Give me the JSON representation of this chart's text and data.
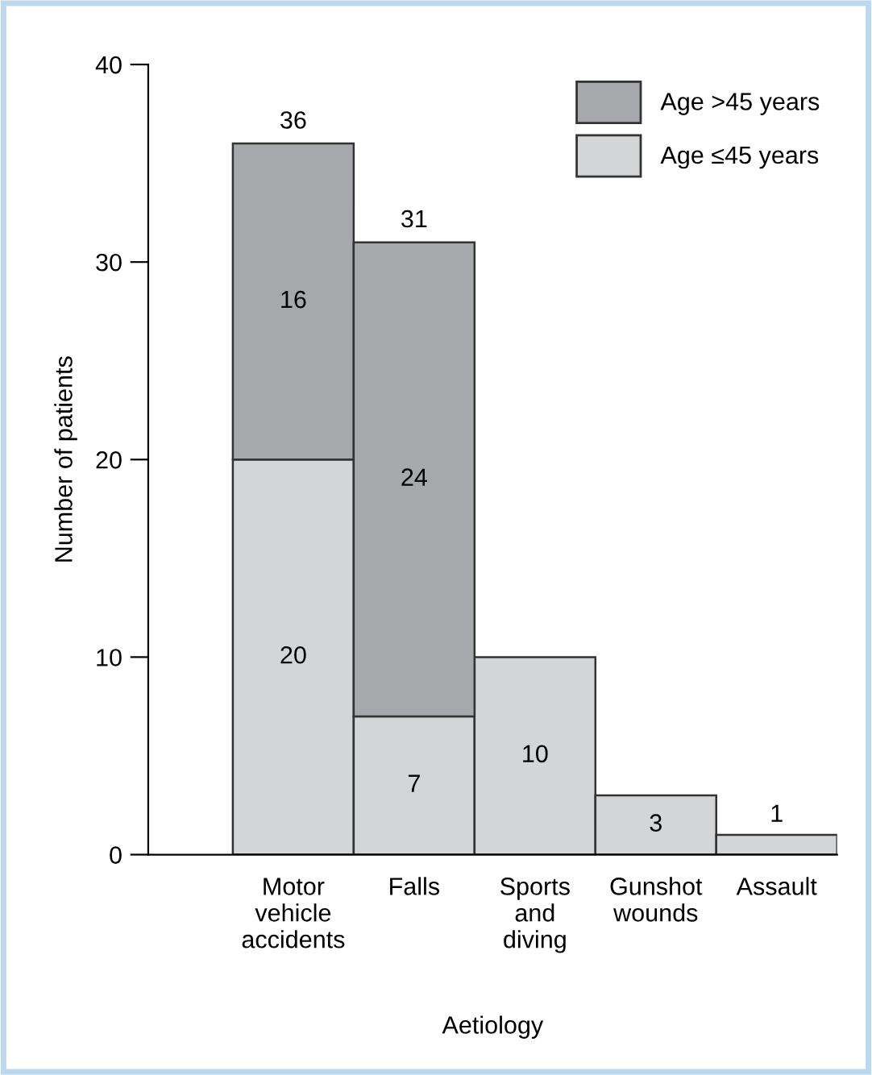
{
  "chart_data": {
    "type": "bar",
    "stacked": true,
    "xlabel": "Aetiology",
    "ylabel": "Number of patients",
    "categories": [
      "Motor\nvehicle\naccidents",
      "Falls",
      "Sports\nand\ndiving",
      "Gunshot\nwounds",
      "Assault"
    ],
    "series": [
      {
        "name": "Age ≤45 years",
        "color": "#d4d5d7",
        "values": [
          20,
          7,
          10,
          3,
          1
        ],
        "value_labels": [
          "20",
          "7",
          "10",
          "3",
          "1"
        ]
      },
      {
        "name": "Age >45 years",
        "color": "#a7a8ab",
        "values": [
          16,
          24,
          null,
          null,
          null
        ],
        "value_labels": [
          "16",
          "24",
          null,
          null,
          null
        ]
      }
    ],
    "totals": [
      "36",
      "31",
      null,
      null,
      null
    ],
    "ylim": [
      0,
      40
    ],
    "yticks": [
      0,
      10,
      20,
      30,
      40
    ],
    "grid": false,
    "legend": "top right"
  }
}
